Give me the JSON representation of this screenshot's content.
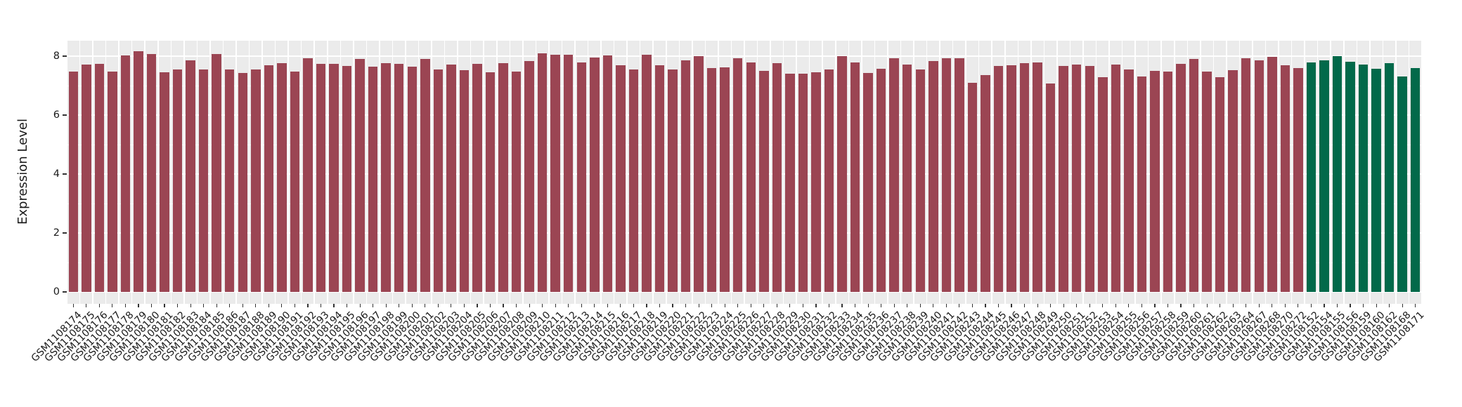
{
  "figure": {
    "background": "#ffffff",
    "panel_background": "#ebebeb",
    "grid_color": "#ffffff",
    "text_color": "#1a1a1a",
    "tick_color": "#333333"
  },
  "chart_data": {
    "type": "bar",
    "title": "",
    "xlabel": "",
    "ylabel": "Expression Level",
    "ylim": [
      0,
      8.52
    ],
    "yticks": [
      0,
      2,
      4,
      6,
      8
    ],
    "yticks_minor": [
      1,
      3,
      5,
      7
    ],
    "grid": true,
    "legend": false,
    "group_colors": {
      "red": "#9b4553",
      "green": "#02694a"
    },
    "categories": [
      "GSM1108174",
      "GSM1108175",
      "GSM1108176",
      "GSM1108177",
      "GSM1108178",
      "GSM1108179",
      "GSM1108180",
      "GSM1108181",
      "GSM1108182",
      "GSM1108183",
      "GSM1108184",
      "GSM1108185",
      "GSM1108186",
      "GSM1108187",
      "GSM1108188",
      "GSM1108189",
      "GSM1108190",
      "GSM1108191",
      "GSM1108192",
      "GSM1108193",
      "GSM1108194",
      "GSM1108195",
      "GSM1108196",
      "GSM1108197",
      "GSM1108198",
      "GSM1108199",
      "GSM1108200",
      "GSM1108201",
      "GSM1108202",
      "GSM1108203",
      "GSM1108204",
      "GSM1108205",
      "GSM1108206",
      "GSM1108207",
      "GSM1108208",
      "GSM1108209",
      "GSM1108210",
      "GSM1108211",
      "GSM1108212",
      "GSM1108213",
      "GSM1108214",
      "GSM1108215",
      "GSM1108216",
      "GSM1108217",
      "GSM1108218",
      "GSM1108219",
      "GSM1108220",
      "GSM1108221",
      "GSM1108222",
      "GSM1108223",
      "GSM1108224",
      "GSM1108225",
      "GSM1108226",
      "GSM1108227",
      "GSM1108228",
      "GSM1108229",
      "GSM1108230",
      "GSM1108231",
      "GSM1108232",
      "GSM1108233",
      "GSM1108234",
      "GSM1108235",
      "GSM1108236",
      "GSM1108237",
      "GSM1108238",
      "GSM1108239",
      "GSM1108240",
      "GSM1108241",
      "GSM1108242",
      "GSM1108243",
      "GSM1108244",
      "GSM1108245",
      "GSM1108246",
      "GSM1108247",
      "GSM1108248",
      "GSM1108249",
      "GSM1108250",
      "GSM1108251",
      "GSM1108252",
      "GSM1108253",
      "GSM1108254",
      "GSM1108255",
      "GSM1108256",
      "GSM1108257",
      "GSM1108258",
      "GSM1108259",
      "GSM1108260",
      "GSM1108261",
      "GSM1108262",
      "GSM1108263",
      "GSM1108264",
      "GSM1108267",
      "GSM1108268",
      "GSM1108270",
      "GSM1108272",
      "GSM1108152",
      "GSM1108154",
      "GSM1108155",
      "GSM1108156",
      "GSM1108159",
      "GSM1108160",
      "GSM1108162",
      "GSM1108168",
      "GSM1108171"
    ],
    "values": [
      7.48,
      7.72,
      7.75,
      7.48,
      8.02,
      8.16,
      8.08,
      7.46,
      7.56,
      7.87,
      7.56,
      8.08,
      7.55,
      7.44,
      7.55,
      7.68,
      7.76,
      7.48,
      7.92,
      7.74,
      7.73,
      7.66,
      7.9,
      7.64,
      7.76,
      7.73,
      7.64,
      7.9,
      7.54,
      7.71,
      7.52,
      7.74,
      7.46,
      7.76,
      7.48,
      7.84,
      8.1,
      8.06,
      8.04,
      7.78,
      7.95,
      8.02,
      7.7,
      7.55,
      8.04,
      7.68,
      7.55,
      7.86,
      8.0,
      7.59,
      7.62,
      7.94,
      7.79,
      7.5,
      7.76,
      7.4,
      7.4,
      7.46,
      7.56,
      8.0,
      7.78,
      7.42,
      7.58,
      7.92,
      7.72,
      7.56,
      7.83,
      7.94,
      7.92,
      7.1,
      7.35,
      7.66,
      7.7,
      7.76,
      7.79,
      7.07,
      7.66,
      7.71,
      7.66,
      7.29,
      7.71,
      7.56,
      7.32,
      7.5,
      7.47,
      7.74,
      7.9,
      7.48,
      7.29,
      7.52,
      7.94,
      7.86,
      7.98,
      7.7,
      7.6,
      7.78,
      7.86,
      8.0,
      7.8,
      7.72,
      7.57,
      7.77,
      7.31,
      7.6
    ],
    "groups": [
      "red",
      "red",
      "red",
      "red",
      "red",
      "red",
      "red",
      "red",
      "red",
      "red",
      "red",
      "red",
      "red",
      "red",
      "red",
      "red",
      "red",
      "red",
      "red",
      "red",
      "red",
      "red",
      "red",
      "red",
      "red",
      "red",
      "red",
      "red",
      "red",
      "red",
      "red",
      "red",
      "red",
      "red",
      "red",
      "red",
      "red",
      "red",
      "red",
      "red",
      "red",
      "red",
      "red",
      "red",
      "red",
      "red",
      "red",
      "red",
      "red",
      "red",
      "red",
      "red",
      "red",
      "red",
      "red",
      "red",
      "red",
      "red",
      "red",
      "red",
      "red",
      "red",
      "red",
      "red",
      "red",
      "red",
      "red",
      "red",
      "red",
      "red",
      "red",
      "red",
      "red",
      "red",
      "red",
      "red",
      "red",
      "red",
      "red",
      "red",
      "red",
      "red",
      "red",
      "red",
      "red",
      "red",
      "red",
      "red",
      "red",
      "red",
      "red",
      "red",
      "red",
      "red",
      "red",
      "green",
      "green",
      "green",
      "green",
      "green",
      "green",
      "green",
      "green",
      "green"
    ]
  }
}
